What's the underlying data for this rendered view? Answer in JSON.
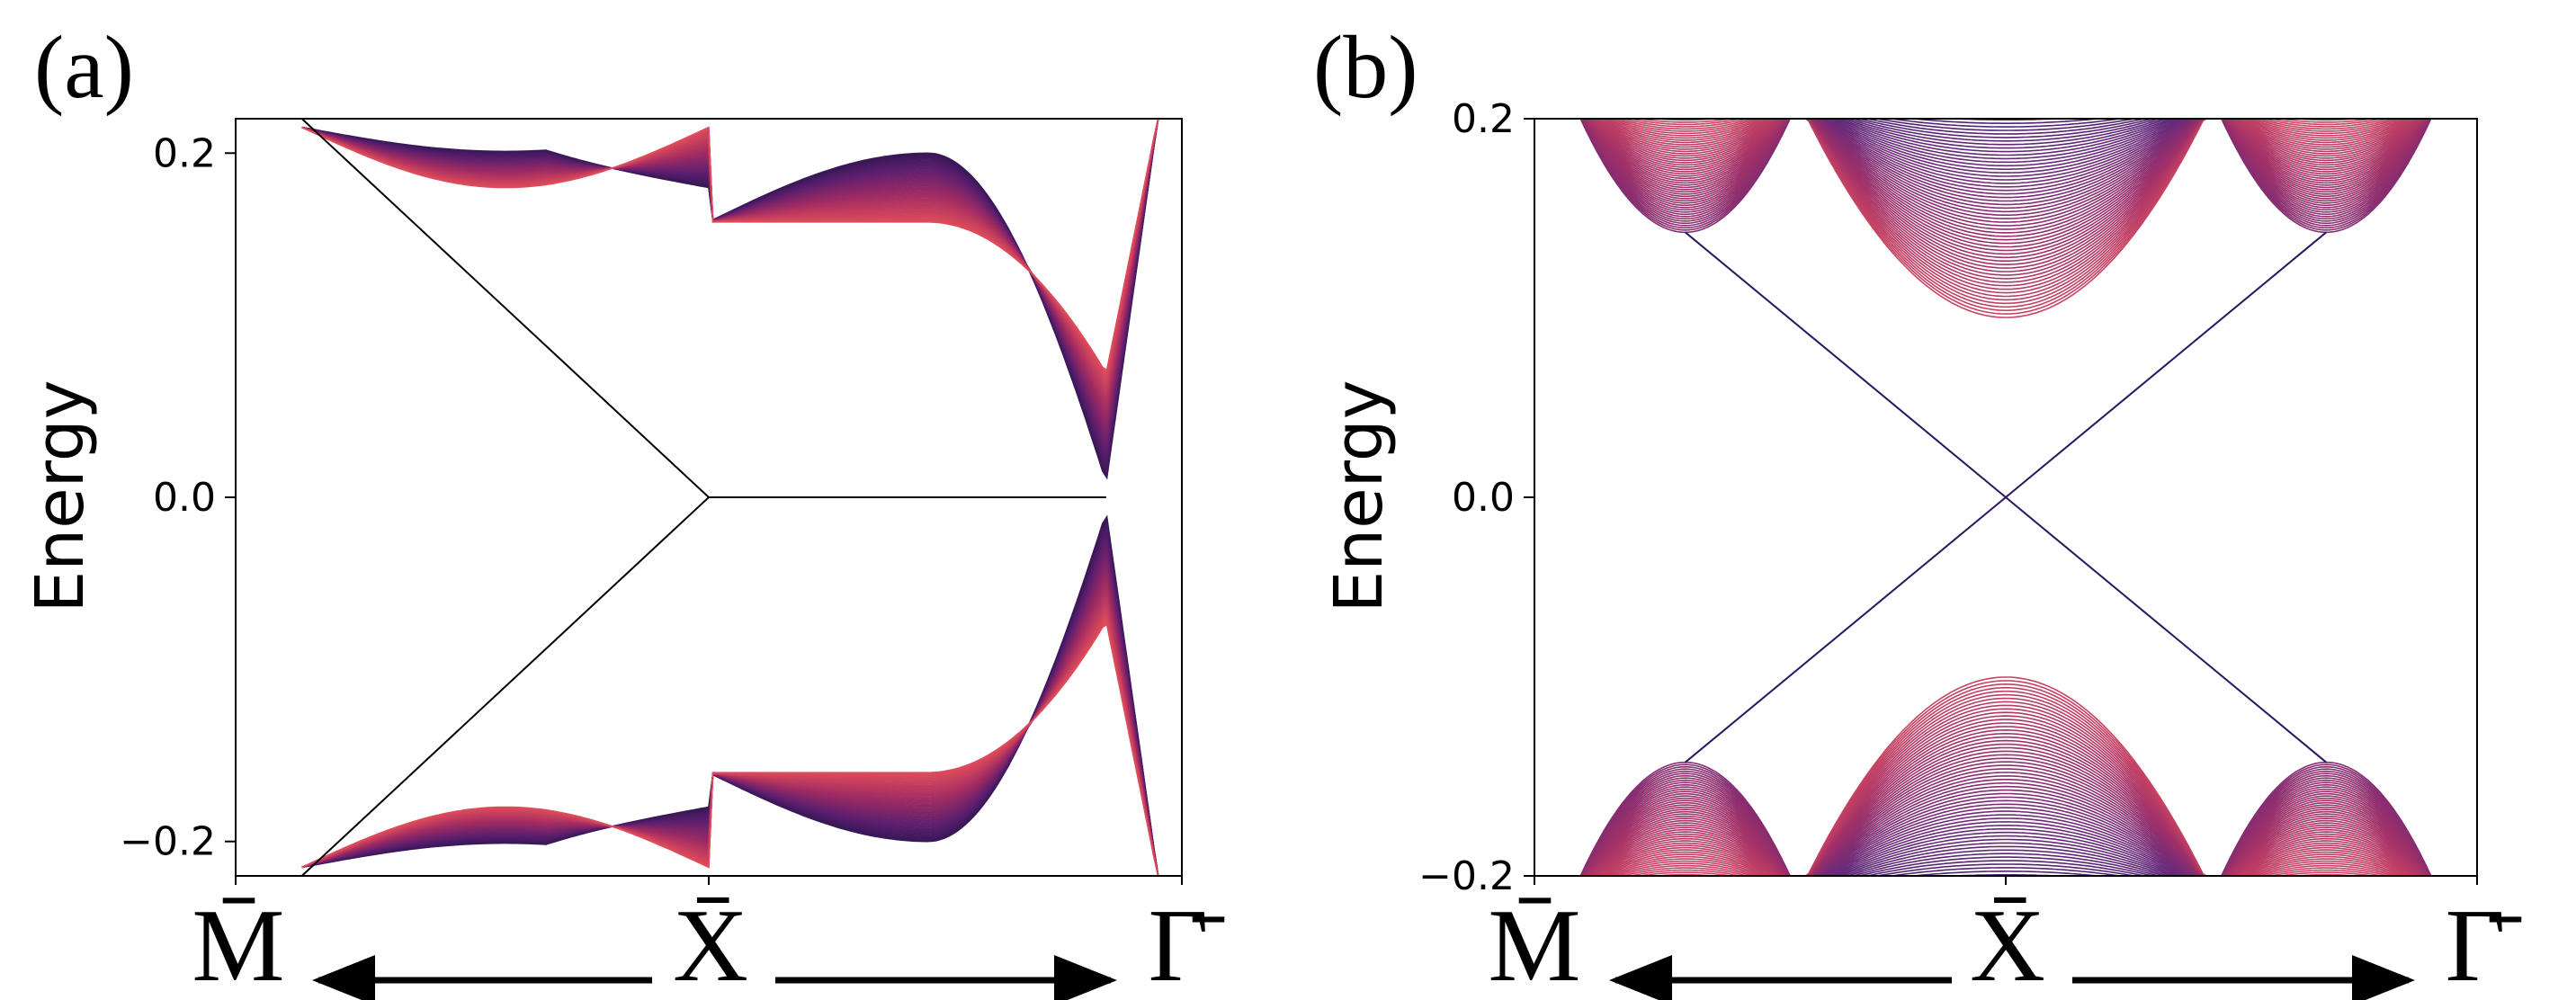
{
  "chart_data": [
    {
      "type": "line",
      "panel_label": "(a)",
      "ylabel": "Energy",
      "ylim": [
        -0.22,
        0.22
      ],
      "yticks": [
        -0.2,
        0.0,
        0.2
      ],
      "ytick_labels": [
        "−0.2",
        "0.0",
        "0.2"
      ],
      "kpath": [
        "M̄",
        "X̄",
        "Γ̄"
      ],
      "bulk_band_count": 60,
      "bulk_color_range": [
        "#1a1240",
        "#5a1e6e",
        "#a12c63",
        "#de4b5a"
      ],
      "edge_states": [
        {
          "x": [
            0.07,
            0.5,
            0.92
          ],
          "y": [
            0.22,
            0.0,
            0.0
          ]
        },
        {
          "x": [
            0.07,
            0.5
          ],
          "y": [
            -0.22,
            0.0
          ]
        }
      ],
      "grid": false
    },
    {
      "type": "line",
      "panel_label": "(b)",
      "ylabel": "Energy",
      "ylim": [
        -0.2,
        0.2
      ],
      "yticks": [
        -0.2,
        0.0,
        0.2
      ],
      "ytick_labels": [
        "−0.2",
        "0.0",
        "0.2"
      ],
      "kpath": [
        "M̄",
        "X̄",
        "Γ̄"
      ],
      "bulk_band_count": 60,
      "bulk_gap_min": 0.095,
      "side_gap_min": 0.14,
      "bulk_color_range": [
        "#3a1c6a",
        "#6a2a7a",
        "#a03068",
        "#d94a60"
      ],
      "edge_states": [
        {
          "x": [
            0.16,
            0.5,
            0.84
          ],
          "y": [
            0.14,
            0.0,
            -0.14
          ]
        },
        {
          "x": [
            0.16,
            0.5,
            0.84
          ],
          "y": [
            -0.14,
            0.0,
            0.14
          ]
        }
      ],
      "grid": false
    }
  ]
}
